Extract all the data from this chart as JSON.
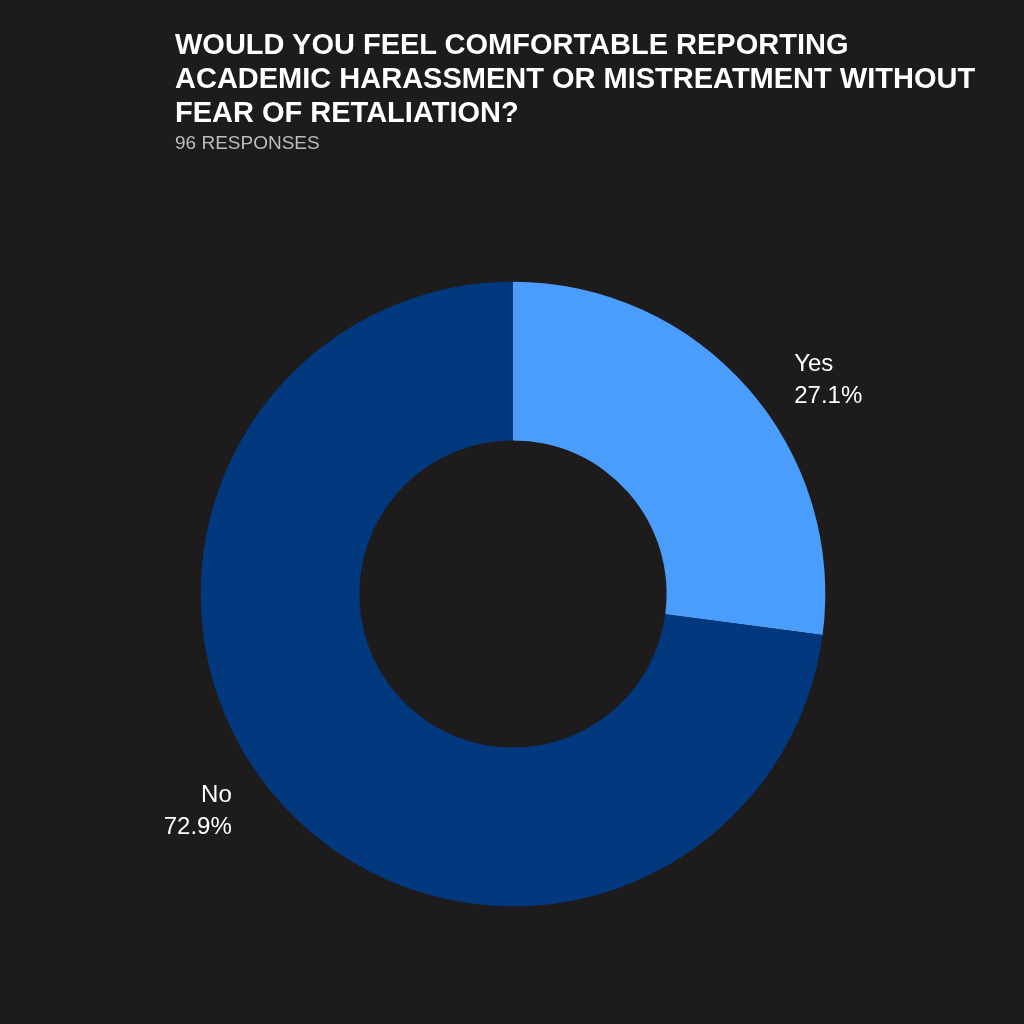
{
  "chart_data": {
    "type": "donut",
    "title": "WOULD YOU FEEL COMFORTABLE REPORTING ACADEMIC HARASSMENT OR MISTREATMENT WITHOUT FEAR OF RETALIATION?",
    "subtitle": "96 RESPONSES",
    "categories": [
      "Yes",
      "No"
    ],
    "values": [
      27.1,
      72.9
    ],
    "colors": [
      "#4b9dfc",
      "#02397e"
    ],
    "value_labels": [
      "27.1%",
      "72.9%"
    ],
    "legend": false
  }
}
